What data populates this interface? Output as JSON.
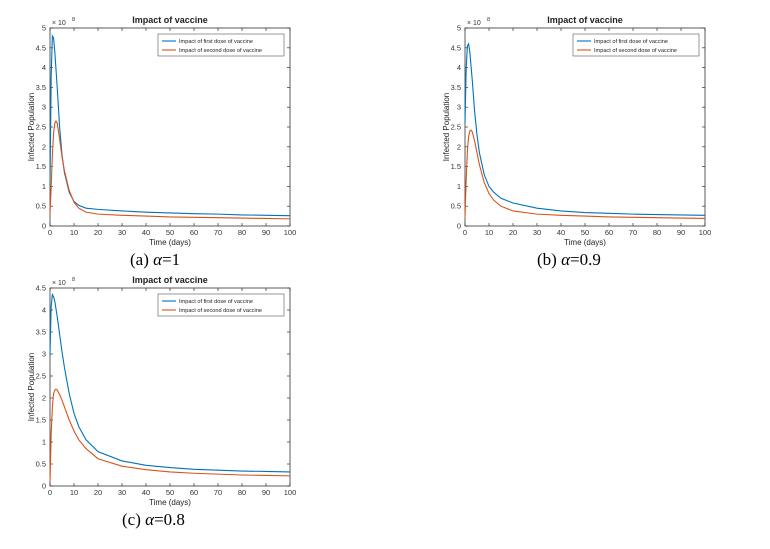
{
  "panels": [
    {
      "caption_label": "(a)",
      "caption_symbol": "α",
      "caption_value": "=1"
    },
    {
      "caption_label": "(b)",
      "caption_symbol": "α",
      "caption_value": "=0.9"
    },
    {
      "caption_label": "(c)",
      "caption_symbol": "α",
      "caption_value": "=0.8"
    }
  ],
  "chart_data": [
    {
      "type": "line",
      "title": "Impact of vaccine",
      "xlabel": "Time (days)",
      "ylabel": "Infected Population",
      "exponent_label": "× 10",
      "exponent_power": "8",
      "xlim": [
        0,
        100
      ],
      "ylim": [
        0,
        5
      ],
      "xticks": [
        0,
        10,
        20,
        30,
        40,
        50,
        60,
        70,
        80,
        90,
        100
      ],
      "yticks": [
        0,
        0.5,
        1,
        1.5,
        2,
        2.5,
        3,
        3.5,
        4,
        4.5,
        5
      ],
      "legend_position": "top-right",
      "grid": false,
      "series": [
        {
          "name": "Impact of first dose of vaccine",
          "color": "#0072BD",
          "x": [
            0,
            0.5,
            1,
            1.5,
            2,
            3,
            4,
            5,
            6,
            8,
            10,
            12,
            15,
            20,
            30,
            40,
            50,
            60,
            70,
            80,
            90,
            100
          ],
          "y": [
            1.0,
            3.8,
            4.8,
            4.75,
            4.4,
            3.5,
            2.5,
            1.8,
            1.35,
            0.85,
            0.62,
            0.52,
            0.45,
            0.42,
            0.38,
            0.35,
            0.33,
            0.31,
            0.3,
            0.28,
            0.27,
            0.26
          ]
        },
        {
          "name": "Impact of second dose of vaccine",
          "color": "#D95319",
          "x": [
            0,
            0.5,
            1,
            1.5,
            2,
            2.5,
            3,
            4,
            5,
            6,
            8,
            10,
            12,
            15,
            20,
            30,
            40,
            50,
            60,
            70,
            80,
            90,
            100
          ],
          "y": [
            0.3,
            1.0,
            1.8,
            2.35,
            2.6,
            2.65,
            2.6,
            2.2,
            1.75,
            1.4,
            0.9,
            0.6,
            0.45,
            0.35,
            0.3,
            0.27,
            0.25,
            0.23,
            0.22,
            0.21,
            0.2,
            0.19,
            0.18
          ]
        }
      ]
    },
    {
      "type": "line",
      "title": "Impact of vaccine",
      "xlabel": "Time (days)",
      "ylabel": "Infected Population",
      "exponent_label": "× 10",
      "exponent_power": "8",
      "xlim": [
        0,
        100
      ],
      "ylim": [
        0,
        5
      ],
      "xticks": [
        0,
        10,
        20,
        30,
        40,
        50,
        60,
        70,
        80,
        90,
        100
      ],
      "yticks": [
        0,
        0.5,
        1,
        1.5,
        2,
        2.5,
        3,
        3.5,
        4,
        4.5,
        5
      ],
      "legend_position": "top-right",
      "grid": false,
      "series": [
        {
          "name": "Impact of first dose of vaccine",
          "color": "#0072BD",
          "x": [
            0,
            0.5,
            1,
            1.5,
            2,
            3,
            4,
            5,
            6,
            8,
            10,
            12,
            15,
            20,
            30,
            40,
            50,
            60,
            70,
            80,
            90,
            100
          ],
          "y": [
            2.6,
            4.0,
            4.55,
            4.6,
            4.4,
            3.7,
            2.9,
            2.3,
            1.85,
            1.3,
            1.0,
            0.85,
            0.7,
            0.58,
            0.45,
            0.38,
            0.34,
            0.32,
            0.3,
            0.29,
            0.28,
            0.27
          ]
        },
        {
          "name": "Impact of second dose of vaccine",
          "color": "#D95319",
          "x": [
            0,
            0.5,
            1,
            1.5,
            2,
            2.5,
            3,
            4,
            5,
            6,
            8,
            10,
            12,
            15,
            20,
            30,
            40,
            50,
            60,
            70,
            80,
            90,
            100
          ],
          "y": [
            0.2,
            1.2,
            1.9,
            2.25,
            2.4,
            2.42,
            2.38,
            2.15,
            1.85,
            1.55,
            1.1,
            0.82,
            0.65,
            0.5,
            0.38,
            0.3,
            0.27,
            0.25,
            0.23,
            0.22,
            0.21,
            0.2,
            0.19
          ]
        }
      ]
    },
    {
      "type": "line",
      "title": "Impact of vaccine",
      "xlabel": "Time (days)",
      "ylabel": "Infected Population",
      "exponent_label": "× 10",
      "exponent_power": "8",
      "xlim": [
        0,
        100
      ],
      "ylim": [
        0,
        4.5
      ],
      "xticks": [
        0,
        10,
        20,
        30,
        40,
        50,
        60,
        70,
        80,
        90,
        100
      ],
      "yticks": [
        0,
        0.5,
        1,
        1.5,
        2,
        2.5,
        3,
        3.5,
        4,
        4.5
      ],
      "legend_position": "top-right",
      "grid": false,
      "series": [
        {
          "name": "Impact of first dose of vaccine",
          "color": "#0072BD",
          "x": [
            0,
            0.5,
            1,
            1.5,
            2,
            3,
            4,
            5,
            6,
            8,
            10,
            12,
            15,
            20,
            30,
            40,
            50,
            60,
            70,
            80,
            90,
            100
          ],
          "y": [
            3.0,
            4.1,
            4.35,
            4.3,
            4.2,
            3.85,
            3.45,
            3.05,
            2.7,
            2.1,
            1.65,
            1.35,
            1.05,
            0.78,
            0.57,
            0.47,
            0.42,
            0.38,
            0.36,
            0.34,
            0.33,
            0.32
          ]
        },
        {
          "name": "Impact of second dose of vaccine",
          "color": "#D95319",
          "x": [
            0,
            0.5,
            1,
            1.5,
            2,
            2.5,
            3,
            4,
            5,
            6,
            8,
            10,
            12,
            15,
            20,
            30,
            40,
            50,
            60,
            70,
            80,
            90,
            100
          ],
          "y": [
            0.1,
            1.2,
            1.8,
            2.1,
            2.18,
            2.2,
            2.18,
            2.08,
            1.95,
            1.8,
            1.5,
            1.25,
            1.05,
            0.85,
            0.62,
            0.45,
            0.37,
            0.32,
            0.29,
            0.27,
            0.25,
            0.24,
            0.23
          ]
        }
      ]
    }
  ]
}
